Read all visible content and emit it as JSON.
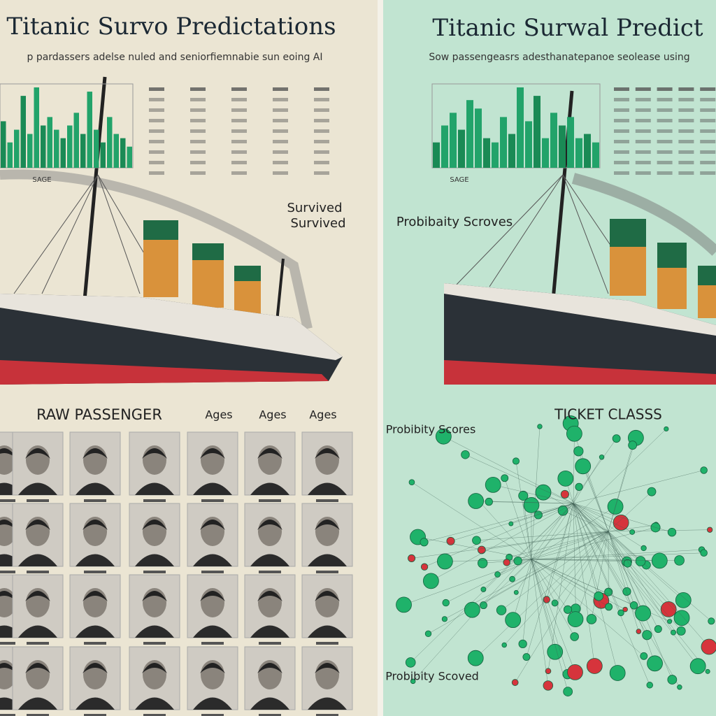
{
  "left_panel": {
    "title": "Titanic Survo Predictations",
    "subtitle": "p pardassers adelse nuled and seniorfiemnabie sun eoing AI",
    "chart_label": "SAGE",
    "bars": [
      55,
      30,
      45,
      85,
      40,
      95,
      50,
      60,
      45,
      35,
      50,
      65,
      40,
      90,
      45,
      30,
      60,
      40,
      35,
      25
    ],
    "ship_labels": [
      "Survived",
      "Survived"
    ],
    "section_title": "RAW PASSENGER",
    "column_labels": [
      "Ages",
      "Ages",
      "Ages"
    ]
  },
  "right_panel": {
    "title": "Titanic Surwal Predict",
    "subtitle": "Sow passengeasrs adesthanatepanoe seolease using",
    "chart_label": "SAGE",
    "bars": [
      30,
      50,
      65,
      45,
      80,
      70,
      35,
      30,
      60,
      40,
      95,
      55,
      85,
      35,
      65,
      50,
      60,
      35,
      40,
      30
    ],
    "ship_label": "Probibaity Scroves",
    "section_title": "TICKET CLASSS",
    "scores_labels": [
      "Probibity Scores",
      "Probibity Scoved"
    ]
  }
}
